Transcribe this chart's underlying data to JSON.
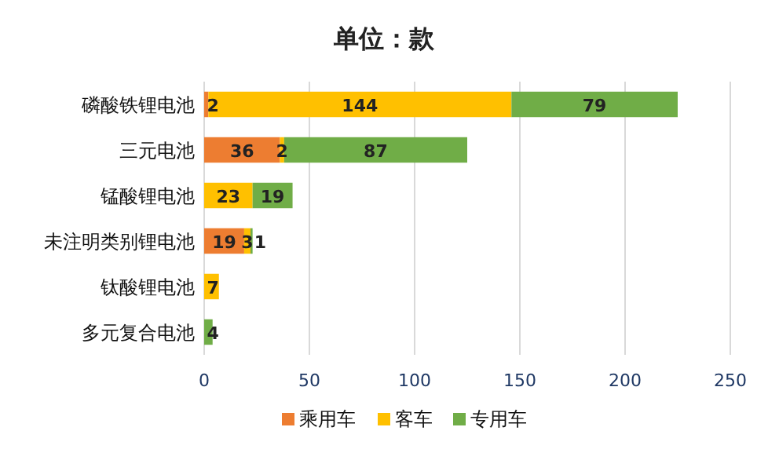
{
  "chart_data": {
    "type": "bar",
    "orientation": "horizontal",
    "stacked": true,
    "title": "单位：款",
    "categories": [
      "磷酸铁锂电池",
      "三元电池",
      "锰酸锂电池",
      "未注明类别锂电池",
      "钛酸锂电池",
      "多元复合电池"
    ],
    "series": [
      {
        "name": "乘用车",
        "color": "#ed7d31",
        "values": [
          2,
          36,
          null,
          19,
          null,
          null
        ]
      },
      {
        "name": "客车",
        "color": "#ffc000",
        "values": [
          144,
          2,
          23,
          3,
          7,
          null
        ]
      },
      {
        "name": "专用车",
        "color": "#70ad47",
        "values": [
          79,
          87,
          19,
          1,
          null,
          4
        ]
      }
    ],
    "xlim": [
      0,
      250
    ],
    "xticks": [
      0,
      50,
      100,
      150,
      200,
      250
    ],
    "grid": "x",
    "legend": "bottom",
    "data_labels": true
  }
}
